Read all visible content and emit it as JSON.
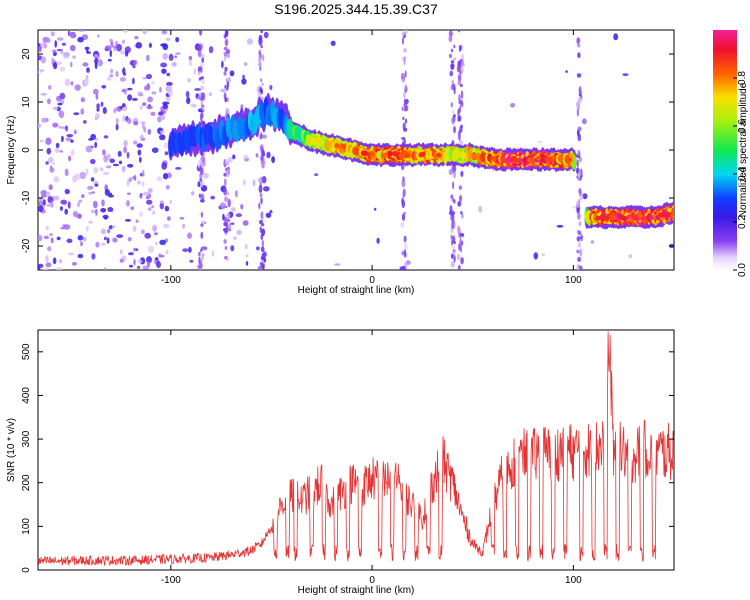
{
  "title": "S196.2025.344.15.39.C37",
  "chart_data": [
    {
      "type": "heatmap",
      "name": "spectrogram",
      "xlabel": "Height of straight line (km)",
      "ylabel": "Frequency (Hz)",
      "xlim": [
        -166,
        150
      ],
      "ylim": [
        -25,
        25
      ],
      "xticks": [
        -100,
        0,
        100
      ],
      "yticks": [
        -20,
        -10,
        0,
        10,
        20
      ],
      "colorbar": {
        "label": "Normalized spectral amplitude",
        "range": [
          0,
          1
        ],
        "ticks": [
          "0.0",
          "0.2",
          "0.4",
          "0.6",
          "0.8"
        ]
      },
      "ridge": {
        "x": [
          -100,
          -90,
          -80,
          -70,
          -60,
          -52,
          -45,
          -40,
          -35,
          -30,
          -20,
          -10,
          0,
          10,
          20,
          30,
          40,
          50,
          60,
          70,
          80,
          90,
          100,
          105,
          110,
          120,
          130,
          140,
          150
        ],
        "freq": [
          1,
          2,
          3,
          4,
          6,
          8,
          7,
          4,
          3,
          2,
          1,
          0,
          -1,
          -1,
          -1,
          -1,
          -1,
          -1,
          -2,
          -2,
          -2,
          -2,
          -2,
          -14,
          -14,
          -14,
          -14,
          -14,
          -13
        ],
        "amplitude": [
          0.3,
          0.3,
          0.3,
          0.35,
          0.4,
          0.35,
          0.35,
          0.5,
          0.55,
          0.65,
          0.75,
          0.8,
          0.85,
          0.85,
          0.8,
          0.85,
          0.7,
          0.75,
          0.9,
          0.95,
          0.95,
          0.9,
          0.75,
          0.6,
          0.85,
          0.95,
          0.95,
          0.9,
          0.9
        ]
      },
      "vertical_bands_x": [
        -85,
        -72,
        -55,
        16,
        40,
        44,
        103
      ]
    },
    {
      "type": "line",
      "name": "snr",
      "xlabel": "Height of straight line (km)",
      "ylabel": "SNR (10 * v/v)",
      "xlim": [
        -166,
        150
      ],
      "ylim": [
        0,
        550
      ],
      "xticks": [
        -100,
        0,
        100
      ],
      "yticks": [
        0,
        100,
        200,
        300,
        400,
        500
      ],
      "color": "#e53333",
      "series": [
        {
          "name": "SNR",
          "x": [
            -166,
            -140,
            -120,
            -100,
            -80,
            -70,
            -60,
            -55,
            -50,
            -45,
            -40,
            -35,
            -30,
            -25,
            -20,
            -15,
            -10,
            -5,
            0,
            5,
            10,
            15,
            20,
            25,
            30,
            35,
            40,
            45,
            50,
            55,
            60,
            65,
            70,
            75,
            80,
            85,
            90,
            95,
            100,
            105,
            110,
            115,
            118,
            120,
            125,
            130,
            135,
            140,
            145,
            150
          ],
          "values": [
            20,
            22,
            22,
            25,
            28,
            35,
            45,
            60,
            100,
            150,
            170,
            160,
            180,
            200,
            150,
            180,
            200,
            190,
            210,
            200,
            220,
            180,
            150,
            120,
            200,
            250,
            200,
            120,
            60,
            40,
            150,
            220,
            250,
            260,
            260,
            270,
            260,
            280,
            270,
            280,
            270,
            300,
            510,
            280,
            270,
            260,
            280,
            270,
            270,
            270
          ]
        }
      ]
    }
  ]
}
